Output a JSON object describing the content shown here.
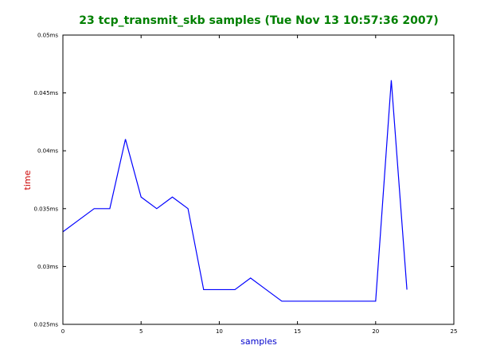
{
  "chart_data": {
    "type": "line",
    "title": "23 tcp_transmit_skb samples (Tue Nov 13 10:57:36 2007)",
    "x_label": "samples",
    "y_label": "time",
    "x": [
      0,
      1,
      2,
      3,
      4,
      5,
      6,
      7,
      8,
      9,
      10,
      11,
      12,
      13,
      14,
      15,
      16,
      17,
      18,
      19,
      20,
      21,
      22
    ],
    "series": [
      {
        "name": "time",
        "color": "#0000ff",
        "values": [
          0.033,
          0.034,
          0.035,
          0.035,
          0.041,
          0.036,
          0.035,
          0.036,
          0.035,
          0.028,
          0.028,
          0.028,
          0.029,
          0.028,
          0.027,
          0.027,
          0.027,
          0.027,
          0.027,
          0.027,
          0.027,
          0.0461,
          0.028
        ]
      }
    ],
    "xlim": [
      0,
      25
    ],
    "xticks": [
      0,
      5,
      10,
      15,
      20,
      25
    ],
    "ylim": [
      0.025,
      0.05
    ],
    "yticks": [
      {
        "value": 0.025,
        "label": "0.025ms"
      },
      {
        "value": 0.03,
        "label": "0.03ms"
      },
      {
        "value": 0.035,
        "label": "0.035ms"
      },
      {
        "value": 0.04,
        "label": "0.04ms"
      },
      {
        "value": 0.045,
        "label": "0.045ms"
      },
      {
        "value": 0.05,
        "label": "0.05ms"
      }
    ]
  }
}
